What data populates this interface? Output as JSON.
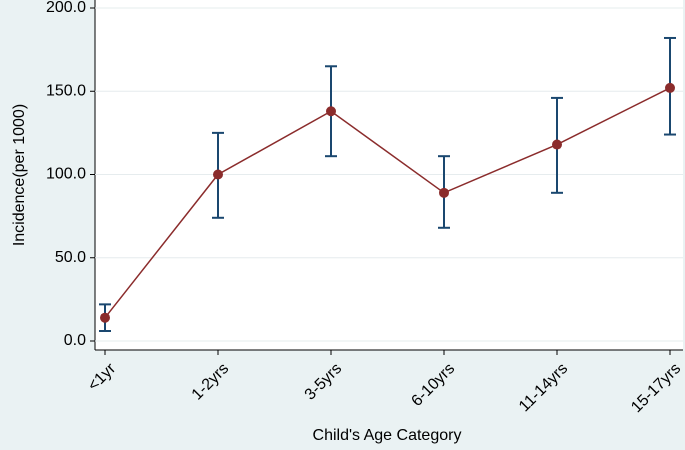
{
  "chart_data": {
    "type": "line",
    "y_label": "Incidence(per 1000)",
    "x_label": "Child's Age Category",
    "categories": [
      "<1yr",
      "1-2yrs",
      "3-5yrs",
      "6-10yrs",
      "11-14yrs",
      "15-17yrs"
    ],
    "values": [
      14,
      100,
      138,
      89,
      118,
      152
    ],
    "lower": [
      6,
      74,
      111,
      68,
      89,
      124
    ],
    "upper": [
      22,
      125,
      165,
      111,
      146,
      182
    ],
    "color": "#8b2c2c",
    "error_color": "#1a476f",
    "ylim": [
      0,
      200
    ],
    "yticks": [
      {
        "value": 0,
        "label": "0.0"
      },
      {
        "value": 50,
        "label": "50.0"
      },
      {
        "value": 100,
        "label": "100.0"
      },
      {
        "value": 150,
        "label": "150.0"
      },
      {
        "value": 200,
        "label": "200.0"
      }
    ],
    "grid": true
  }
}
